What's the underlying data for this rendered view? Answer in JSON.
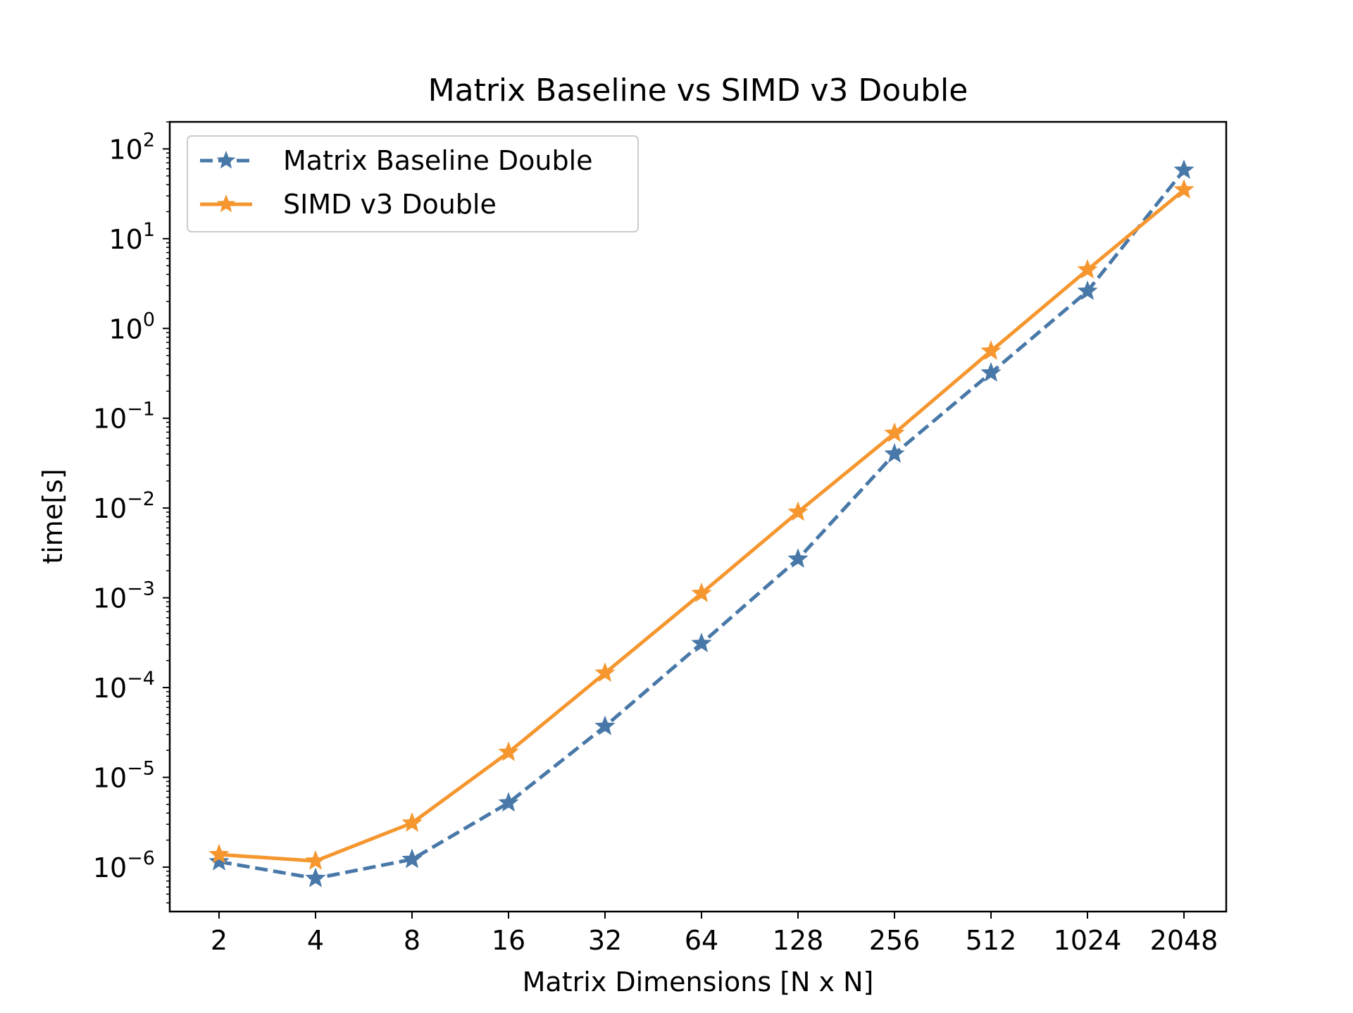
{
  "chart_data": {
    "type": "line",
    "title": "Matrix Baseline vs SIMD v3 Double",
    "xlabel": "Matrix Dimensions [N x N]",
    "ylabel": "time[s]",
    "yscale": "log",
    "ylim": [
      3.2e-07,
      200
    ],
    "ytick_labels": [
      {
        "base": "10",
        "exp": "−6",
        "value": 1e-06
      },
      {
        "base": "10",
        "exp": "−5",
        "value": 1e-05
      },
      {
        "base": "10",
        "exp": "−4",
        "value": 0.0001
      },
      {
        "base": "10",
        "exp": "−3",
        "value": 0.001
      },
      {
        "base": "10",
        "exp": "−2",
        "value": 0.01
      },
      {
        "base": "10",
        "exp": "−1",
        "value": 0.1
      },
      {
        "base": "10",
        "exp": "0",
        "value": 1
      },
      {
        "base": "10",
        "exp": "1",
        "value": 10
      },
      {
        "base": "10",
        "exp": "2",
        "value": 100
      }
    ],
    "categories": [
      "2",
      "4",
      "8",
      "16",
      "32",
      "64",
      "128",
      "256",
      "512",
      "1024",
      "2048"
    ],
    "series": [
      {
        "name": "Matrix Baseline Double",
        "color": "#4878a8",
        "line_style": "dashed",
        "marker": "star",
        "values": [
          1.15e-06,
          7.5e-07,
          1.22e-06,
          5.2e-06,
          3.7e-05,
          0.00031,
          0.0027,
          0.04,
          0.32,
          2.6,
          58
        ]
      },
      {
        "name": "SIMD v3 Double",
        "color": "#f5962e",
        "line_style": "solid",
        "marker": "star",
        "values": [
          1.38e-06,
          1.17e-06,
          3.1e-06,
          1.9e-05,
          0.000145,
          0.00112,
          0.009,
          0.068,
          0.56,
          4.5,
          35
        ]
      }
    ],
    "grid": false,
    "legend_position": "upper-left"
  }
}
